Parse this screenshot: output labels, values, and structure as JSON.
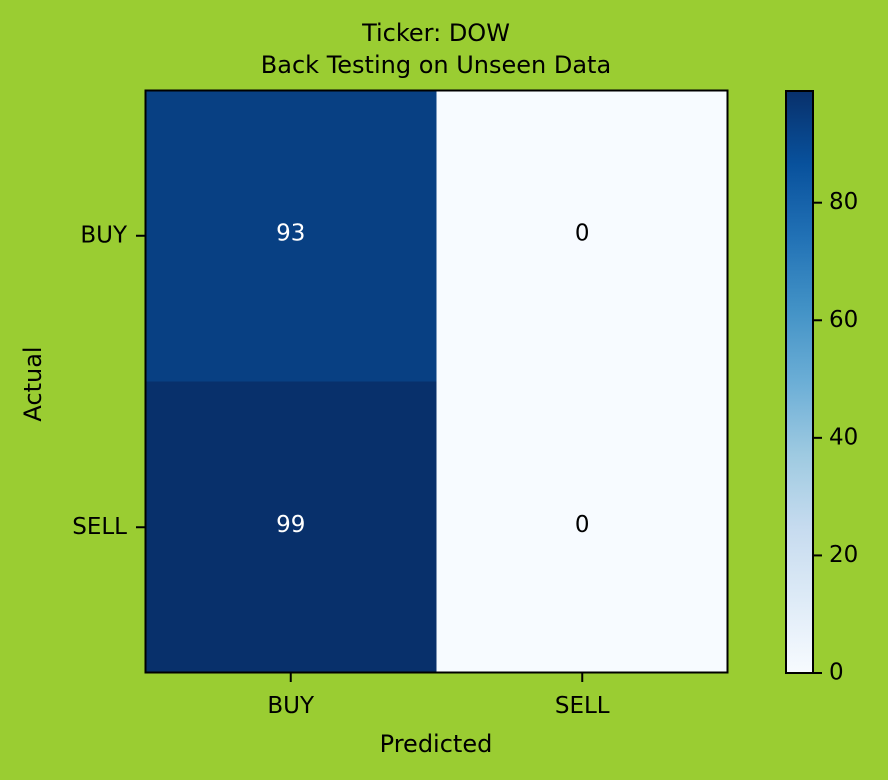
{
  "colors": {
    "background": "#9acd32",
    "cmap_low": "#f7fbff",
    "cmap_mid": "#6baed6",
    "cmap_high": "#08306b",
    "text_dark": "#000000",
    "text_light": "#ffffff"
  },
  "chart_data": {
    "type": "heatmap",
    "title": [
      "Ticker: DOW",
      "Back Testing on Unseen Data"
    ],
    "xlabel": "Predicted",
    "ylabel": "Actual",
    "x_categories": [
      "BUY",
      "SELL"
    ],
    "y_categories": [
      "BUY",
      "SELL"
    ],
    "values": [
      [
        93,
        0
      ],
      [
        99,
        0
      ]
    ],
    "colorbar": {
      "range": [
        0,
        99
      ],
      "ticks": [
        0,
        20,
        40,
        60,
        80
      ]
    },
    "grid": false,
    "colormap": "Blues"
  }
}
